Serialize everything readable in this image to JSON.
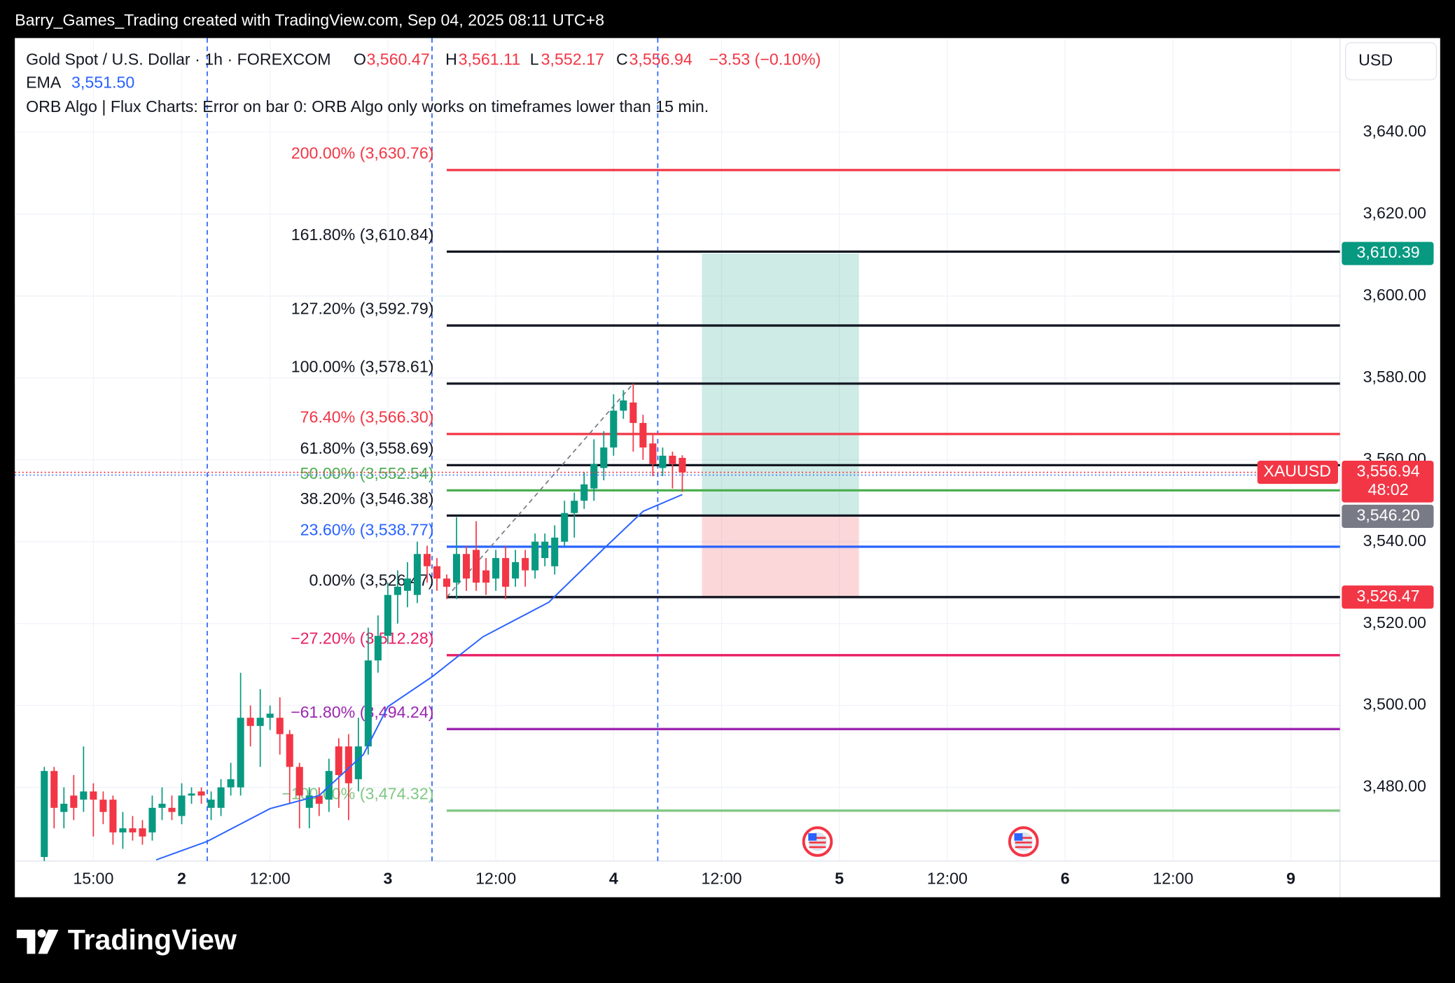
{
  "header": {
    "attribution": "Barry_Games_Trading created with TradingView.com, Sep 04, 2025 08:11 UTC+8"
  },
  "chart_data": {
    "type": "candlestick",
    "legend": {
      "symbol": "Gold Spot / U.S. Dollar · 1h · FOREXCOM",
      "o_key": "O",
      "o": "3,560.47",
      "h_key": "H",
      "h": "3,561.11",
      "l_key": "L",
      "l": "3,552.17",
      "c_key": "C",
      "c": "3,556.94",
      "change": "−3.53 (−0.10%)",
      "ema_name": "EMA",
      "ema_value": "3,551.50",
      "orb_error": "ORB Algo | Flux Charts: Error on bar 0: ORB Algo only works on timeframes lower than 15 min."
    },
    "currency": "USD",
    "x": [
      0,
      1,
      2,
      3,
      4,
      5,
      6,
      7,
      8,
      9,
      10,
      11,
      12,
      13,
      14,
      15,
      16,
      17,
      18,
      19,
      20,
      21,
      22,
      23,
      24,
      25,
      26,
      27,
      28,
      29,
      30,
      31,
      32,
      33,
      34,
      35,
      36,
      37,
      38,
      39,
      40,
      41,
      42,
      43,
      44,
      45,
      46,
      47,
      48,
      49,
      50,
      51,
      52,
      53,
      54,
      55,
      56,
      57,
      58,
      59,
      60,
      61,
      62,
      63,
      64,
      65
    ],
    "open": [
      3463,
      3484,
      3474,
      3478,
      3477,
      3479,
      3477,
      3477,
      3469,
      3470,
      3470,
      3469,
      3475,
      3475,
      3473,
      3478,
      3479,
      3475,
      3475,
      3480,
      3480,
      3497,
      3495,
      3497,
      3497,
      3493,
      3485,
      3475,
      3478,
      3477,
      3490,
      3490,
      3482,
      3490,
      3511,
      3517,
      3527,
      3528,
      3527,
      3537,
      3534,
      3531,
      3530,
      3537,
      3538,
      3533,
      3531,
      3536,
      3531,
      3536,
      3533,
      3536,
      3534,
      3540,
      3547,
      3550,
      3553,
      3558,
      3563,
      3572,
      3574,
      3569,
      3564,
      3558,
      3561,
      3560.47
    ],
    "high": [
      3485,
      3485,
      3480,
      3483,
      3490,
      3481,
      3479,
      3478,
      3474,
      3473,
      3472,
      3478,
      3480,
      3478,
      3481,
      3480,
      3480,
      3479,
      3482,
      3486,
      3508,
      3500,
      3504,
      3500,
      3502,
      3494,
      3486,
      3480,
      3480,
      3487,
      3492,
      3493,
      3497,
      3519,
      3522,
      3530,
      3533,
      3535,
      3540,
      3539,
      3536,
      3532,
      3546,
      3539,
      3545,
      3536,
      3538,
      3539,
      3538,
      3538,
      3542,
      3542,
      3544,
      3550,
      3552,
      3557,
      3565,
      3567,
      3576,
      3577,
      3578.61,
      3571,
      3566,
      3563,
      3562,
      3561.11
    ],
    "low": [
      3462,
      3470,
      3470,
      3472,
      3474,
      3468,
      3471,
      3466,
      3465,
      3467,
      3466,
      3467,
      3472,
      3472,
      3471,
      3476,
      3476,
      3472,
      3473,
      3478,
      3478,
      3490,
      3485,
      3494,
      3488,
      3476,
      3470,
      3470,
      3473,
      3474,
      3475,
      3472,
      3479,
      3488,
      3508,
      3515,
      3520,
      3524,
      3525,
      3530,
      3528,
      3526,
      3526,
      3528,
      3528,
      3527,
      3528,
      3526,
      3529,
      3529,
      3531,
      3534,
      3532,
      3539,
      3541,
      3548,
      3550,
      3555,
      3561,
      3570,
      3562,
      3560,
      3556,
      3556,
      3553,
      3552.17
    ],
    "close": [
      3484,
      3475,
      3476,
      3475,
      3479,
      3477,
      3474,
      3469,
      3470,
      3469,
      3468,
      3475,
      3476,
      3474,
      3478,
      3478.5,
      3478,
      3477,
      3480,
      3482,
      3497,
      3495,
      3497,
      3498,
      3493,
      3485,
      3478,
      3478,
      3476,
      3484,
      3483,
      3481,
      3490,
      3511,
      3517,
      3527,
      3529,
      3531,
      3537,
      3534,
      3531,
      3529,
      3537,
      3531,
      3530,
      3530,
      3536,
      3529,
      3535,
      3533,
      3540,
      3540,
      3541,
      3547,
      3550,
      3554,
      3559,
      3563,
      3572,
      3574.5,
      3569,
      3563,
      3559,
      3561,
      3559,
      3556.94
    ],
    "up_color": "#089981",
    "down_color": "#f23645",
    "ema": {
      "x": [
        11.4,
        16.6,
        23,
        28,
        32.5,
        35,
        39.5,
        44.7,
        51.4,
        57,
        61,
        65
      ],
      "values": [
        3462.3,
        3466.8,
        3474.8,
        3478,
        3488,
        3499.7,
        3507,
        3516.8,
        3525.2,
        3538.3,
        3547.4,
        3551.5
      ],
      "color": "#2962ff"
    },
    "xlim": [
      -3,
      132
    ],
    "xticks": [
      {
        "value": 5,
        "label": "15:00"
      },
      {
        "value": 14,
        "label": "2"
      },
      {
        "value": 23,
        "label": "12:00"
      },
      {
        "value": 35,
        "label": "3"
      },
      {
        "value": 46,
        "label": "12:00"
      },
      {
        "value": 58,
        "label": "4"
      },
      {
        "value": 69,
        "label": "12:00"
      },
      {
        "value": 81,
        "label": "5"
      },
      {
        "value": 92,
        "label": "12:00"
      },
      {
        "value": 104,
        "label": "6"
      },
      {
        "value": 115,
        "label": "12:00"
      },
      {
        "value": 127,
        "label": "9"
      }
    ],
    "ylim": [
      3462,
      3663
    ],
    "yticks": [
      {
        "value": 3480,
        "label": "3,480.00"
      },
      {
        "value": 3500,
        "label": "3,500.00"
      },
      {
        "value": 3520,
        "label": "3,520.00"
      },
      {
        "value": 3540,
        "label": "3,540.00"
      },
      {
        "value": 3560,
        "label": "3,560.00"
      },
      {
        "value": 3580,
        "label": "3,580.00"
      },
      {
        "value": 3600,
        "label": "3,600.00"
      },
      {
        "value": 3620,
        "label": "3,620.00"
      },
      {
        "value": 3640,
        "label": "3,640.00"
      }
    ],
    "grid": true,
    "session_lines": [
      16.6,
      39.5,
      62.5
    ],
    "fib": {
      "start": 41,
      "anchor_end": 60,
      "levels": [
        {
          "label": "200.00% (3,630.76)",
          "value": 3630.76,
          "color": "#f23645"
        },
        {
          "label": "161.80% (3,610.84)",
          "value": 3610.84,
          "color": "#131722"
        },
        {
          "label": "127.20% (3,592.79)",
          "value": 3592.79,
          "color": "#131722"
        },
        {
          "label": "100.00% (3,578.61)",
          "value": 3578.61,
          "color": "#131722"
        },
        {
          "label": "76.40% (3,566.30)",
          "value": 3566.3,
          "color": "#f23645"
        },
        {
          "label": "61.80% (3,558.69)",
          "value": 3558.69,
          "color": "#131722"
        },
        {
          "label": "50.00% (3,552.54)",
          "value": 3552.54,
          "color": "#4caf50"
        },
        {
          "label": "38.20% (3,546.38)",
          "value": 3546.38,
          "color": "#131722"
        },
        {
          "label": "23.60% (3,538.77)",
          "value": 3538.77,
          "color": "#2962ff"
        },
        {
          "label": "0.00% (3,526.47)",
          "value": 3526.47,
          "color": "#131722"
        },
        {
          "label": "−27.20% (3,512.28)",
          "value": 3512.28,
          "color": "#e91e63"
        },
        {
          "label": "−61.80% (3,494.24)",
          "value": 3494.24,
          "color": "#9c27b0"
        },
        {
          "label": "−100.00% (3,474.32)",
          "value": 3474.32,
          "color": "#81c784"
        }
      ]
    },
    "position": {
      "start": 67,
      "end": 83,
      "target": 3610.39,
      "entry": 3546.2,
      "stop": 3526.47,
      "profit_color": "#089981",
      "loss_color": "#f23645"
    },
    "price_tags": [
      {
        "value": 3610.39,
        "label": "3,610.39",
        "color": "#089981"
      },
      {
        "value": 3546.2,
        "label": "3,546.20",
        "color": "#787b86"
      },
      {
        "value": 3526.47,
        "label": "3,526.47",
        "color": "#f23645"
      }
    ],
    "last_price": {
      "symbol": "XAUUSD",
      "value": 3556.94,
      "label": "3,556.94",
      "countdown": "48:02",
      "color": "#f23645"
    }
  },
  "footer": {
    "brand": "TradingView"
  }
}
